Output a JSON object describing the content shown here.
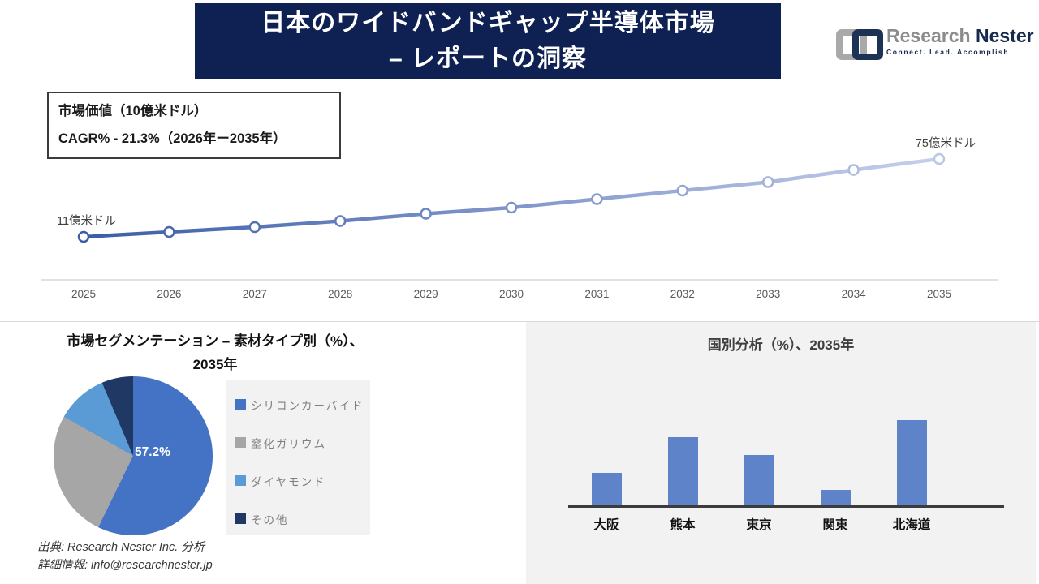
{
  "colors": {
    "header_navy": "#0e2152",
    "line_gradient_start": "#3a5da8",
    "line_gradient_end": "#c6d0ec",
    "axis_gray": "#d9d9d9",
    "tick_text": "#595959",
    "panel_bg": "#f2f2f2",
    "bar_color": "#5f83c8",
    "bar_axis": "#3c3c3c"
  },
  "header": {
    "title_line1": "日本のワイドバンドギャップ半導体市場",
    "title_line2": "– レポートの洞察"
  },
  "logo": {
    "brand_word1": "Research",
    "brand_word2": "Nester",
    "tagline": "Connect. Lead. Accomplish"
  },
  "info_box": {
    "line1": "市場価値（10億米ドル）",
    "line2": "CAGR% - 21.3%（2026年ー2035年）"
  },
  "segmentation": {
    "title_line1": "市場セグメンテーション – 素材タイプ別（%）、",
    "title_line2": "2035年",
    "center_label": "57.2%"
  },
  "country": {
    "title": "国別分析（%）、2035年"
  },
  "footer": {
    "source": "出典: Research Nester Inc. 分析",
    "contact": "詳細情報: info@researchnester.jp"
  },
  "chart_data": [
    {
      "type": "line",
      "name": "market-value-trend",
      "title": "市場価値（10億米ドル）",
      "x": [
        2025,
        2026,
        2027,
        2028,
        2029,
        2030,
        2031,
        2032,
        2033,
        2034,
        2035
      ],
      "values": [
        11,
        15,
        19,
        24,
        30,
        35,
        42,
        49,
        56,
        66,
        75
      ],
      "values_estimated_from_plot": true,
      "start_point_label": "11億米ドル",
      "end_point_label": "75億米ドル",
      "cagr_label": "CAGR% - 21.3%（2026年ー2035年）",
      "ylim": [
        11,
        75
      ],
      "grid": false,
      "legend": "none",
      "marker": "open-circle"
    },
    {
      "type": "pie",
      "name": "material-type-share",
      "title": "市場セグメンテーション – 素材タイプ別（%）、2035年",
      "labels": [
        "シリコンカーバイド",
        "窒化ガリウム",
        "ダイヤモンド",
        "その他"
      ],
      "values": [
        57.2,
        26.0,
        10.4,
        6.4
      ],
      "only_labeled_slice": "57.2%",
      "values_estimated_except_labeled": true,
      "colors": [
        "#4472c4",
        "#a6a6a6",
        "#5b9bd5",
        "#1f3864"
      ],
      "legend_position": "right",
      "start_angle_deg": 0
    },
    {
      "type": "bar",
      "name": "country-analysis",
      "title": "国別分析（%）、2035年",
      "categories": [
        "大阪",
        "熊本",
        "東京",
        "関東",
        "北海道"
      ],
      "values": [
        13,
        27,
        20,
        6,
        34
      ],
      "values_estimated_from_plot": true,
      "ylim": [
        0,
        40
      ],
      "grid": false
    }
  ]
}
